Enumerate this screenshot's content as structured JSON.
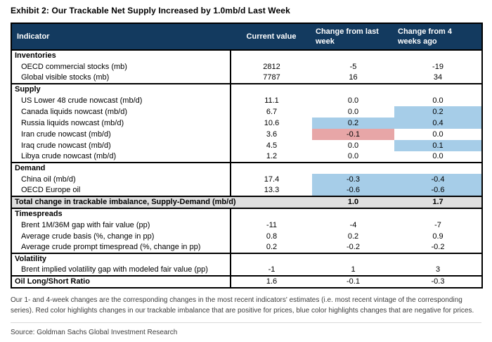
{
  "title": "Exhibit 2: Our Trackable Net Supply Increased by 1.0mb/d Last Week",
  "table": {
    "columns": [
      "Indicator",
      "Current value",
      "Change from last week",
      "Change from 4 weeks ago"
    ],
    "rows": [
      {
        "type": "section",
        "label": "Inventories"
      },
      {
        "type": "item",
        "label": "OECD commercial stocks (mb)",
        "values": [
          "2812",
          "-5",
          "-19"
        ],
        "highlights": [
          null,
          null
        ]
      },
      {
        "type": "item",
        "label": "Global visible stocks (mb)",
        "values": [
          "7787",
          "16",
          "34"
        ],
        "highlights": [
          null,
          null
        ]
      },
      {
        "type": "section",
        "label": "Supply"
      },
      {
        "type": "item",
        "label": "US Lower 48 crude nowcast (mb/d)",
        "values": [
          "11.1",
          "0.0",
          "0.0"
        ],
        "highlights": [
          null,
          null
        ]
      },
      {
        "type": "item",
        "label": "Canada liquids nowcast (mb/d)",
        "values": [
          "6.7",
          "0.0",
          "0.2"
        ],
        "highlights": [
          null,
          "blue"
        ]
      },
      {
        "type": "item",
        "label": "Russia liquids nowcast (mb/d)",
        "values": [
          "10.6",
          "0.2",
          "0.4"
        ],
        "highlights": [
          "blue",
          "blue"
        ]
      },
      {
        "type": "item",
        "label": "Iran crude nowcast (mb/d)",
        "values": [
          "3.6",
          "-0.1",
          "0.0"
        ],
        "highlights": [
          "red",
          null
        ]
      },
      {
        "type": "item",
        "label": "Iraq crude nowcast (mb/d)",
        "values": [
          "4.5",
          "0.0",
          "0.1"
        ],
        "highlights": [
          null,
          "blue"
        ]
      },
      {
        "type": "item",
        "label": "Libya crude nowcast (mb/d)",
        "values": [
          "1.2",
          "0.0",
          "0.0"
        ],
        "highlights": [
          null,
          null
        ]
      },
      {
        "type": "section",
        "label": "Demand"
      },
      {
        "type": "item",
        "label": "China oil (mb/d)",
        "values": [
          "17.4",
          "-0.3",
          "-0.4"
        ],
        "highlights": [
          "blue",
          "blue"
        ]
      },
      {
        "type": "item",
        "label": "OECD Europe oil",
        "values": [
          "13.3",
          "-0.6",
          "-0.6"
        ],
        "highlights": [
          "blue",
          "blue"
        ]
      },
      {
        "type": "total",
        "label": "Total change in trackable imbalance, Supply-Demand (mb/d)",
        "values": [
          "",
          "1.0",
          "1.7"
        ]
      },
      {
        "type": "section",
        "label": "Timespreads"
      },
      {
        "type": "item",
        "label": "Brent 1M/36M gap with fair value (pp)",
        "values": [
          "-11",
          "-4",
          "-7"
        ],
        "highlights": [
          null,
          null
        ]
      },
      {
        "type": "item",
        "label": "Average crude basis (%, change in pp)",
        "values": [
          "0.8",
          "0.2",
          "0.9"
        ],
        "highlights": [
          null,
          null
        ]
      },
      {
        "type": "item",
        "label": "Average crude prompt timespread (%, change in pp)",
        "values": [
          "0.2",
          "-0.2",
          "-0.2"
        ],
        "highlights": [
          null,
          null
        ]
      },
      {
        "type": "section",
        "label": "Volatility"
      },
      {
        "type": "item",
        "label": "Brent implied volatility gap with modeled fair value (pp)",
        "values": [
          "-1",
          "1",
          "3"
        ],
        "highlights": [
          null,
          null
        ]
      },
      {
        "type": "bold",
        "label": "Oil Long/Short Ratio",
        "values": [
          "1.6",
          "-0.1",
          "-0.3"
        ],
        "highlights": [
          null,
          null
        ]
      }
    ]
  },
  "footnote": "Our 1- and 4-week changes are the corresponding changes in the most recent indicators' estimates (i.e. most recent vintage of the corresponding series). Red color highlights changes in our trackable imbalance that are positive for prices, blue color highlights changes that are negative for prices.",
  "source": "Source: Goldman Sachs Global Investment Research",
  "colors": {
    "header_bg": "#133a5f",
    "header_text": "#ffffff",
    "highlight_blue": "#a6cde8",
    "highlight_red": "#e7a6a7",
    "total_row_bg": "#dfdfdf",
    "border": "#000000",
    "footnote_text": "#3d3d3d"
  }
}
